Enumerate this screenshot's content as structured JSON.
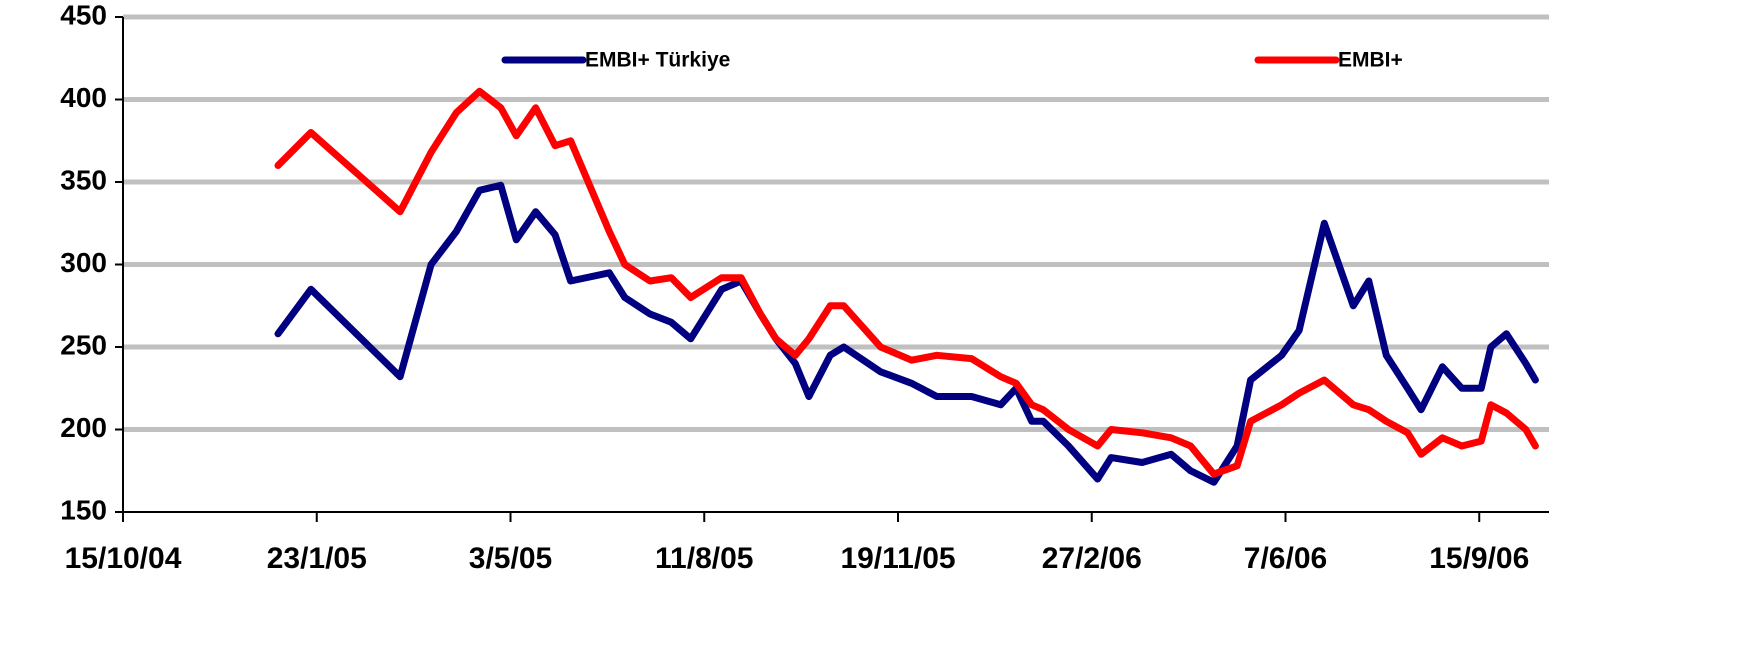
{
  "chart_data": {
    "type": "line",
    "x": [
      "3/1/05",
      "20/1/05",
      "7/3/05",
      "23/3/05",
      "5/4/05",
      "17/4/05",
      "28/4/05",
      "6/5/05",
      "16/5/05",
      "26/5/05",
      "3/6/05",
      "23/6/05",
      "1/7/05",
      "14/7/05",
      "25/7/05",
      "4/8/05",
      "20/8/05",
      "30/8/05",
      "9/9/05",
      "17/9/05",
      "27/9/05",
      "4/10/05",
      "15/10/05",
      "22/10/05",
      "10/11/05",
      "26/11/05",
      "9/12/05",
      "27/12/05",
      "11/1/06",
      "19/1/06",
      "27/1/06",
      "2/2/06",
      "15/2/06",
      "2/3/06",
      "9/3/06",
      "25/3/06",
      "9/4/06",
      "19/4/06",
      "1/5/06",
      "13/5/06",
      "20/5/06",
      "5/6/06",
      "14/6/06",
      "27/6/06",
      "12/7/06",
      "20/7/06",
      "29/7/06",
      "9/8/06",
      "16/8/06",
      "27/8/06",
      "6/9/06",
      "16/9/06",
      "21/9/06",
      "29/9/06",
      "9/10/06",
      "14/10/06"
    ],
    "series": [
      {
        "name": "EMBI+ Türkiye",
        "color": "#000080",
        "values": [
          258,
          285,
          232,
          300,
          320,
          345,
          348,
          315,
          332,
          318,
          290,
          295,
          280,
          270,
          265,
          255,
          285,
          290,
          270,
          255,
          240,
          220,
          245,
          250,
          235,
          228,
          220,
          220,
          215,
          225,
          205,
          205,
          190,
          170,
          183,
          180,
          185,
          175,
          168,
          190,
          230,
          245,
          260,
          325,
          275,
          290,
          245,
          225,
          212,
          238,
          225,
          225,
          250,
          258,
          240,
          230
        ]
      },
      {
        "name": "EMBI+",
        "color": "#ff0000",
        "values": [
          360,
          380,
          332,
          368,
          392,
          405,
          395,
          378,
          395,
          372,
          375,
          320,
          300,
          290,
          292,
          280,
          292,
          292,
          270,
          255,
          245,
          255,
          275,
          275,
          250,
          242,
          245,
          243,
          232,
          228,
          215,
          212,
          200,
          190,
          200,
          198,
          195,
          190,
          173,
          178,
          205,
          215,
          222,
          230,
          215,
          212,
          205,
          198,
          185,
          195,
          190,
          193,
          215,
          210,
          200,
          190
        ]
      }
    ],
    "xlim": [
      "15/10/04",
      "21/10/06"
    ],
    "xticks": [
      "15/10/04",
      "23/1/05",
      "3/5/05",
      "11/8/05",
      "19/11/05",
      "27/2/06",
      "7/6/06",
      "15/9/06"
    ],
    "ylim": [
      150,
      450
    ],
    "yticks": [
      150,
      200,
      250,
      300,
      350,
      400,
      450
    ],
    "grid": true,
    "legend": "top"
  }
}
